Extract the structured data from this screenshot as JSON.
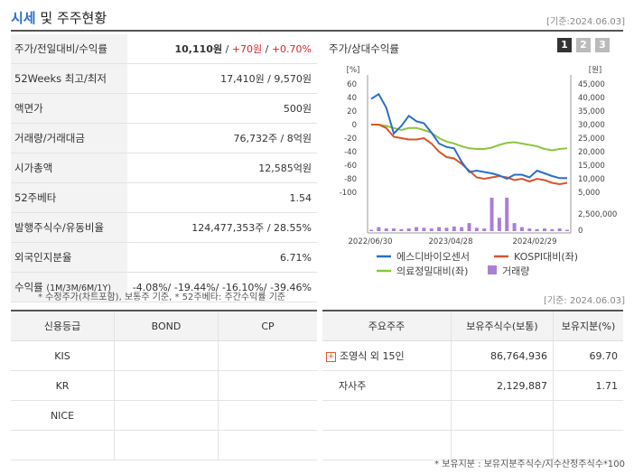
{
  "header": {
    "title_accent": "시세",
    "title_rest": " 및 주주현황",
    "date": "[기준:2024.06.03]"
  },
  "info_rows": [
    {
      "label": "주가/전일대비/수익률"
    },
    {
      "label": "52Weeks 최고/최저",
      "value": "17,410원 / 9,570원"
    },
    {
      "label": "액면가",
      "value": "500원"
    },
    {
      "label": "거래량/거래대금",
      "value": "76,732주 / 8억원"
    },
    {
      "label": "시가총액",
      "value": "12,585억원"
    },
    {
      "label": "52주베타",
      "value": "1.54"
    },
    {
      "label": "발행주식수/유동비율",
      "value": "124,477,353주 / 28.55%"
    },
    {
      "label": "외국인지분율",
      "value": "6.71%"
    }
  ],
  "price": {
    "value": "10,110원",
    "sep1": " / ",
    "change": "+70원",
    "sep2": " / ",
    "rate": "+0.70%"
  },
  "returns": {
    "label": "수익률",
    "sub": "(1M/3M/6M/1Y)",
    "values": "-4.08%/ -19.44%/ -16.10%/ -39.46%"
  },
  "footnote1": "* 수정주가(차트포함), 보통주 기준, * 52주베타: 주간수익률 기준",
  "chart": {
    "title": "주가/상대수익률",
    "tabs": [
      "1",
      "2",
      "3"
    ],
    "active_tab": 0,
    "left_unit": "[%]",
    "right_unit": "[원]",
    "vol_tick": "2,500,000",
    "vol_zero": "0",
    "colors": {
      "stock": "#2a6fc9",
      "kospi": "#d9532c",
      "sector": "#8cc63f",
      "volume": "#a97fd6"
    }
  },
  "chart_data": {
    "type": "line",
    "x_ticks": [
      "2022/06/30",
      "2023/04/28",
      "2024/02/29"
    ],
    "left_axis": {
      "ticks": [
        60,
        40,
        20,
        0,
        -20,
        -40,
        -60,
        -80,
        -100
      ],
      "range": [
        -100,
        60
      ]
    },
    "right_axis": {
      "ticks": [
        "45,000",
        "40,000",
        "35,000",
        "30,000",
        "25,000",
        "20,000",
        "15,000",
        "10,000",
        "5,000"
      ],
      "range": [
        5000,
        45000
      ]
    },
    "series": [
      {
        "name": "에스디바이오센서",
        "values": [
          38,
          45,
          25,
          -13,
          -2,
          13,
          5,
          2,
          -12,
          -28,
          -33,
          -35,
          -55,
          -70,
          -68,
          -70,
          -72,
          -75,
          -80,
          -74,
          -74,
          -78,
          -68,
          -72,
          -76,
          -79,
          -79
        ]
      },
      {
        "name": "KOSPI대비(좌)",
        "values": [
          0,
          0,
          -5,
          -18,
          -20,
          -22,
          -22,
          -20,
          -28,
          -40,
          -48,
          -50,
          -58,
          -68,
          -78,
          -80,
          -78,
          -76,
          -78,
          -82,
          -80,
          -84,
          -80,
          -82,
          -86,
          -88,
          -86
        ]
      },
      {
        "name": "의료정밀대비(좌)",
        "values": [
          0,
          0,
          -2,
          -5,
          -8,
          -5,
          -5,
          -8,
          -12,
          -20,
          -25,
          -28,
          -32,
          -35,
          -36,
          -36,
          -34,
          -30,
          -27,
          -26,
          -28,
          -30,
          -32,
          -36,
          -38,
          -36,
          -35
        ]
      }
    ],
    "volume": {
      "name": "거래량",
      "values": [
        0.1,
        0.3,
        0.2,
        0.2,
        0.15,
        0.2,
        0.3,
        0.25,
        0.2,
        0.3,
        0.25,
        0.35,
        0.3,
        0.6,
        0.25,
        0.2,
        2.5,
        1.0,
        2.5,
        0.6,
        0.3,
        0.2,
        0.15,
        0.2,
        0.15,
        0.2,
        0.1
      ]
    }
  },
  "credit": {
    "headers": [
      "신용등급",
      "BOND",
      "CP"
    ],
    "rows": [
      [
        "KIS",
        "",
        ""
      ],
      [
        "KR",
        "",
        ""
      ],
      [
        "NICE",
        "",
        ""
      ],
      [
        "",
        "",
        ""
      ]
    ]
  },
  "date2": "[기준: 2024.06.03]",
  "holders": {
    "headers": [
      "주요주주",
      "보유주식수(보통)",
      "보유지분(%)"
    ],
    "rows": [
      {
        "name": "조영식 외 15인",
        "shares": "86,764,936",
        "ratio": "69.70"
      },
      {
        "name": "자사주",
        "shares": "2,129,887",
        "ratio": "1.71"
      }
    ]
  },
  "footnote2": "* 보유지분 : 보유지분주식수/지수산정주식수*100"
}
